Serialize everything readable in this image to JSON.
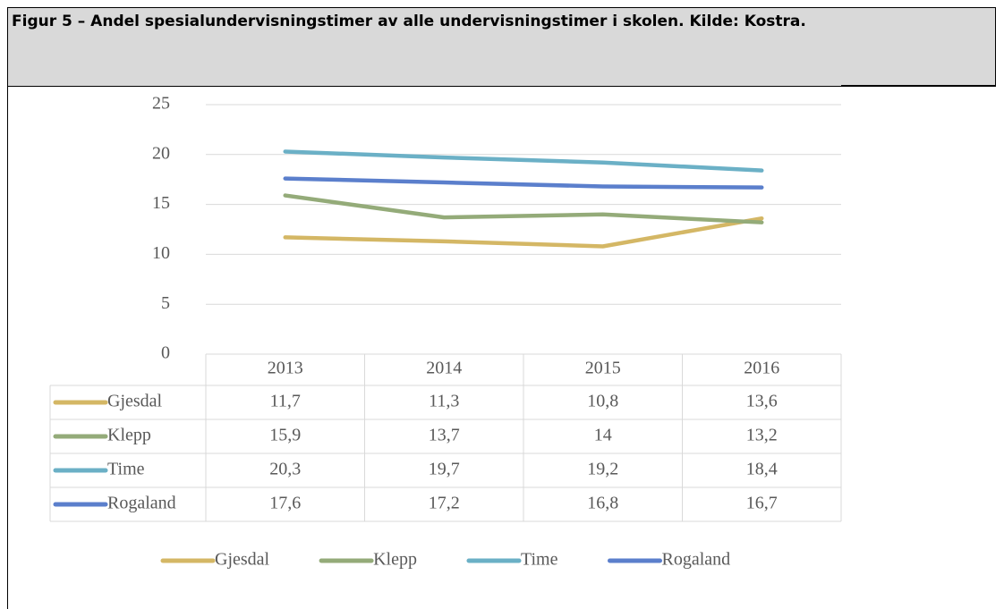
{
  "chart_data": {
    "type": "line",
    "title": "Figur 5 – Andel spesialundervisningstimer av alle undervisningstimer i skolen.  Kilde: Kostra.",
    "categories": [
      "2013",
      "2014",
      "2015",
      "2016"
    ],
    "series": [
      {
        "name": "Gjesdal",
        "color": "#d4b765",
        "values": [
          11.7,
          11.3,
          10.8,
          13.6
        ],
        "value_labels": [
          "11,7",
          "11,3",
          "10,8",
          "13,6"
        ]
      },
      {
        "name": "Klepp",
        "color": "#94ab79",
        "values": [
          15.9,
          13.7,
          14,
          13.2
        ],
        "value_labels": [
          "15,9",
          "13,7",
          "14",
          "13,2"
        ]
      },
      {
        "name": "Time",
        "color": "#6bb0c6",
        "values": [
          20.3,
          19.7,
          19.2,
          18.4
        ],
        "value_labels": [
          "20,3",
          "19,7",
          "19,2",
          "18,4"
        ]
      },
      {
        "name": "Rogaland",
        "color": "#5b7fcc",
        "values": [
          17.6,
          17.2,
          16.8,
          16.7
        ],
        "value_labels": [
          "17,6",
          "17,2",
          "16,8",
          "16,7"
        ]
      }
    ],
    "ylim": [
      0,
      25
    ],
    "yticks": [
      0,
      5,
      10,
      15,
      20,
      25
    ],
    "grid": true,
    "legend": "bottom"
  }
}
